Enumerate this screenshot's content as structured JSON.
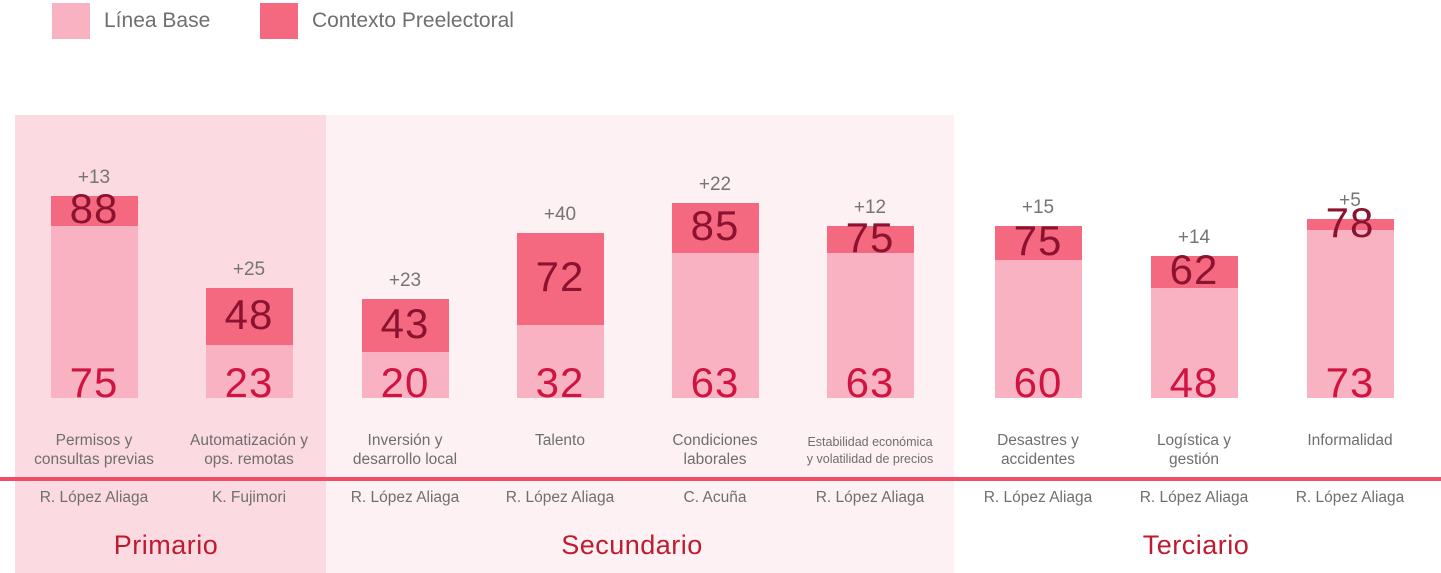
{
  "legend": {
    "items": [
      {
        "label": "Línea Base",
        "color": "#f9b2c1"
      },
      {
        "label": "Contexto Preelectoral",
        "color": "#f4697f"
      }
    ]
  },
  "colors": {
    "base_fill": "#f9b2c1",
    "pre_fill": "#f4697f",
    "base_value_text": "#d01442",
    "pre_value_text": "#8c1330",
    "delta_text": "#757575",
    "category_text": "#6e6e6e",
    "candidate_text": "#6f6f6f",
    "section_title_text": "#be1b31",
    "divider": "#f04d67",
    "section_backgrounds": [
      "#fcdae2",
      "#fdf1f4",
      "#ffffff"
    ]
  },
  "chart_data": {
    "type": "bar",
    "stacked": true,
    "legend_position": "top-left",
    "ylim": [
      0,
      88
    ],
    "series_names": [
      "Línea Base",
      "Contexto Preelectoral"
    ],
    "sections": [
      {
        "title": "Primario",
        "bars": [
          {
            "category": "Permisos y consultas previas",
            "label_lines": [
              "Permisos y",
              "consultas previas"
            ],
            "candidate": "R. López Aliaga",
            "linea_base": 75,
            "contexto_preelectoral": 88,
            "delta": "+13",
            "small_label": false
          },
          {
            "category": "Automatización y ops. remotas",
            "label_lines": [
              "Automatización y",
              "ops. remotas"
            ],
            "candidate": "K. Fujimori",
            "linea_base": 23,
            "contexto_preelectoral": 48,
            "delta": "+25",
            "small_label": false
          }
        ]
      },
      {
        "title": "Secundario",
        "bars": [
          {
            "category": "Inversión y desarrollo local",
            "label_lines": [
              "Inversión y",
              "desarrollo local"
            ],
            "candidate": "R. López Aliaga",
            "linea_base": 20,
            "contexto_preelectoral": 43,
            "delta": "+23",
            "small_label": false
          },
          {
            "category": "Talento",
            "label_lines": [
              "Talento"
            ],
            "candidate": "R. López Aliaga",
            "linea_base": 32,
            "contexto_preelectoral": 72,
            "delta": "+40",
            "small_label": false
          },
          {
            "category": "Condiciones laborales",
            "label_lines": [
              "Condiciones",
              "laborales"
            ],
            "candidate": "C. Acuña",
            "linea_base": 63,
            "contexto_preelectoral": 85,
            "delta": "+22",
            "small_label": false
          },
          {
            "category": "Estabilidad económica y volatilidad de precios",
            "label_lines": [
              "Estabilidad económica",
              "y volatilidad de precios"
            ],
            "candidate": "R. López Aliaga",
            "linea_base": 63,
            "contexto_preelectoral": 75,
            "delta": "+12",
            "small_label": true
          }
        ]
      },
      {
        "title": "Terciario",
        "bars": [
          {
            "category": "Desastres y accidentes",
            "label_lines": [
              "Desastres y",
              "accidentes"
            ],
            "candidate": "R. López Aliaga",
            "linea_base": 60,
            "contexto_preelectoral": 75,
            "delta": "+15",
            "small_label": false
          },
          {
            "category": "Logística y gestión",
            "label_lines": [
              "Logística y",
              "gestión"
            ],
            "candidate": "R. López Aliaga",
            "linea_base": 48,
            "contexto_preelectoral": 62,
            "delta": "+14",
            "small_label": false
          },
          {
            "category": "Informalidad",
            "label_lines": [
              "Informalidad"
            ],
            "candidate": "R. López Aliaga",
            "linea_base": 73,
            "contexto_preelectoral": 78,
            "delta": "+5",
            "small_label": false
          }
        ]
      }
    ]
  }
}
